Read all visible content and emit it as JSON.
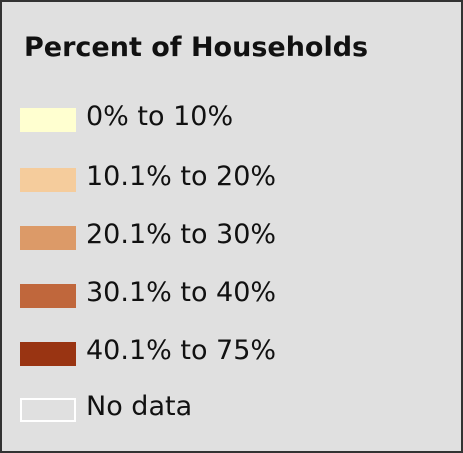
{
  "legend": {
    "title": "Percent of Households",
    "items": [
      {
        "label": "0% to 10%",
        "color": "#ffffd0"
      },
      {
        "label": "10.1% to 20%",
        "color": "#f5cc9c"
      },
      {
        "label": "20.1% to 30%",
        "color": "#dc9a68"
      },
      {
        "label": "30.1% to 40%",
        "color": "#c0673c"
      },
      {
        "label": "40.1% to 75%",
        "color": "#993412"
      },
      {
        "label": "No data",
        "color": "#e0e0e0",
        "border": "#ffffff"
      }
    ]
  }
}
